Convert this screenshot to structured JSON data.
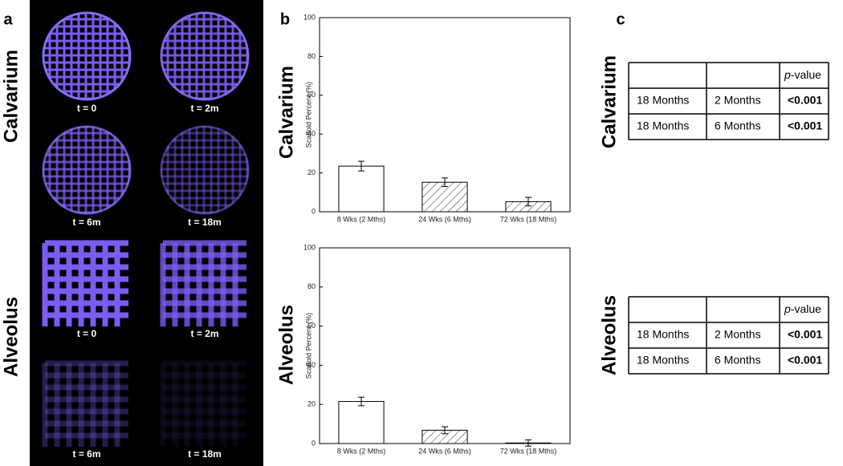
{
  "panels": [
    "a",
    "b",
    "c"
  ],
  "rows": [
    "Calvarium",
    "Alveolus"
  ],
  "images": {
    "captions": [
      "t = 0",
      "t = 2m",
      "t = 6m",
      "t = 18m",
      "t = 0",
      "t = 2m",
      "t = 6m",
      "t = 18m"
    ]
  },
  "chart_data": [
    {
      "type": "bar",
      "ylabel": "Scaffold Percent (%)",
      "categories": [
        "8 Wks (2 Mths)",
        "24 Wks (6 Mths)",
        "72 Wks (18 Mths)"
      ],
      "values": [
        23.5,
        15.2,
        5.2
      ],
      "errors": [
        2.5,
        2.2,
        2.2
      ],
      "fills": [
        "plain",
        "hatch",
        "hatch"
      ],
      "ylim": [
        0,
        100
      ],
      "yticks": [
        0,
        20,
        40,
        60,
        80,
        100
      ]
    },
    {
      "type": "bar",
      "ylabel": "Scaffold Percent (%)",
      "categories": [
        "8 Wks (2 Mths)",
        "24 Wks (6 Mths)",
        "72 Wks (18 Mths)"
      ],
      "values": [
        21.5,
        6.8,
        0.3
      ],
      "errors": [
        2.2,
        1.8,
        1.6
      ],
      "fills": [
        "plain",
        "hatch",
        "hatch"
      ],
      "ylim": [
        0,
        100
      ],
      "yticks": [
        0,
        20,
        40,
        60,
        80,
        100
      ]
    }
  ],
  "tables": [
    {
      "header": "p-value",
      "rows": [
        [
          "18 Months",
          "2 Months",
          "<0.001"
        ],
        [
          "18 Months",
          "6 Months",
          "<0.001"
        ]
      ]
    },
    {
      "header": "p-value",
      "rows": [
        [
          "18 Months",
          "2 Months",
          "<0.001"
        ],
        [
          "18 Months",
          "6 Months",
          "<0.001"
        ]
      ]
    }
  ]
}
